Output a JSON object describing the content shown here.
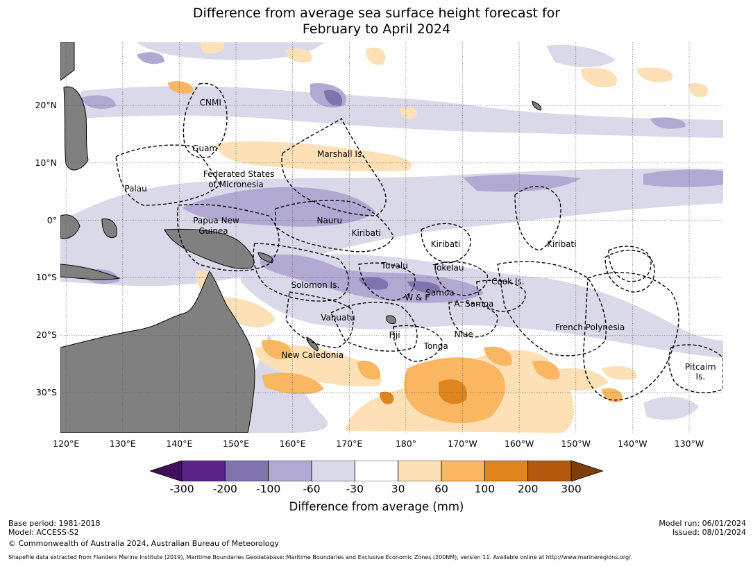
{
  "title": {
    "line1": "Difference from average sea surface height forecast for",
    "line2": "February to April 2024"
  },
  "map": {
    "lat_labels": [
      "20°N",
      "10°N",
      "0°",
      "10°S",
      "20°S",
      "30°S"
    ],
    "lon_labels": [
      "120°E",
      "130°E",
      "140°E",
      "150°E",
      "160°E",
      "170°E",
      "180°",
      "170°W",
      "160°W",
      "150°W",
      "140°W",
      "130°W"
    ],
    "lat_values": [
      20,
      10,
      0,
      -10,
      -20,
      -30
    ],
    "lon_values": [
      120,
      130,
      140,
      150,
      160,
      170,
      180,
      190,
      200,
      210,
      220,
      230
    ],
    "extent": {
      "lon_min": 119.0,
      "lon_max": 236.0,
      "lat_min": -37.0,
      "lat_max": 31.0
    },
    "land_color": "#808080",
    "grid": true,
    "regions": [
      {
        "name": "CNMI",
        "lon": 145.5,
        "lat": 20.5
      },
      {
        "name": "Guam",
        "lon": 144.5,
        "lat": 12.5
      },
      {
        "name": "Marshall Is.",
        "lon": 168.5,
        "lat": 11.5
      },
      {
        "name": "Federated States",
        "lon": 150.5,
        "lat": 8.0
      },
      {
        "name": "of Micronesia",
        "lon": 150.0,
        "lat": 6.2
      },
      {
        "name": "Palau",
        "lon": 132.3,
        "lat": 5.5
      },
      {
        "name": "Papua New",
        "lon": 146.5,
        "lat": 0.0
      },
      {
        "name": "Guinea",
        "lon": 146.0,
        "lat": -1.8
      },
      {
        "name": "Nauru",
        "lon": 166.5,
        "lat": 0.0
      },
      {
        "name": "Kiribati",
        "lon": 173.0,
        "lat": -2.2
      },
      {
        "name": "Kiribati",
        "lon": 187.0,
        "lat": -4.2
      },
      {
        "name": "Kiribati",
        "lon": 207.5,
        "lat": -4.2
      },
      {
        "name": "Tuvalu",
        "lon": 178.0,
        "lat": -7.9
      },
      {
        "name": "Tokelau",
        "lon": 187.5,
        "lat": -8.2
      },
      {
        "name": "Solomon Is.",
        "lon": 164.0,
        "lat": -11.3
      },
      {
        "name": "Cook Is.",
        "lon": 198.0,
        "lat": -10.7
      },
      {
        "name": "Samoa",
        "lon": 186.0,
        "lat": -12.6
      },
      {
        "name": "W & F",
        "lon": 182.0,
        "lat": -13.5
      },
      {
        "name": "A. Samoa",
        "lon": 192.0,
        "lat": -14.5
      },
      {
        "name": "Vanuatu",
        "lon": 168.0,
        "lat": -16.9
      },
      {
        "name": "French Polynesia",
        "lon": 212.5,
        "lat": -18.7
      },
      {
        "name": "Fiji",
        "lon": 178.0,
        "lat": -20.0
      },
      {
        "name": "Niue",
        "lon": 190.2,
        "lat": -19.9
      },
      {
        "name": "Tonga",
        "lon": 185.3,
        "lat": -21.9
      },
      {
        "name": "New Caledonia",
        "lon": 163.5,
        "lat": -23.5
      },
      {
        "name": "Pitcairn",
        "lon": 232.0,
        "lat": -25.5
      },
      {
        "name": "Is.",
        "lon": 232.0,
        "lat": -27.2
      }
    ]
  },
  "legend": {
    "title": "Difference from average (mm)",
    "ticks": [
      "-300",
      "-200",
      "-100",
      "-60",
      "-30",
      "30",
      "60",
      "100",
      "200",
      "300"
    ],
    "colors": [
      "#3f0e5c",
      "#5a2488",
      "#8173ad",
      "#b2a9d3",
      "#d9d9ea",
      "#ffffff",
      "#fde0b6",
      "#f9b761",
      "#e0841e",
      "#b5590f",
      "#7f3b08"
    ]
  },
  "footer": {
    "base_period": "Base period: 1981-2018",
    "model": "Model: ACCESS-S2",
    "copyright": "© Commonwealth of Australia 2024, Australian Bureau of Meteorology",
    "model_run": "Model run: 06/01/2024",
    "issued": "Issued: 08/01/2024",
    "shapefile": "Shapefile data extracted from Flanders Marine Institute (2019), Maritime Boundaries Geodatabase: Maritime Boundaries and Exclusive Economic Zones (200NM), version 11. Available online at http://www.marineregions.org/."
  }
}
